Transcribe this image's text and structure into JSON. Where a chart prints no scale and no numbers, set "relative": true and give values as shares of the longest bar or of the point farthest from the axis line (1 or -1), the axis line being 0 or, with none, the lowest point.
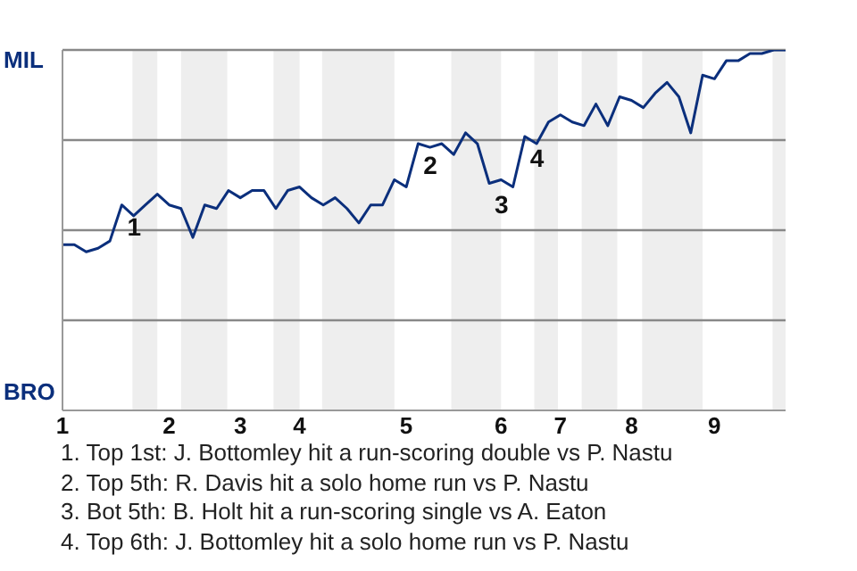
{
  "chart_data": {
    "type": "line",
    "relative": true,
    "categories": [
      "1",
      null,
      null,
      null,
      null,
      null,
      null,
      null,
      null,
      "2",
      null,
      null,
      null,
      null,
      null,
      "3",
      null,
      null,
      null,
      null,
      "4",
      null,
      null,
      null,
      null,
      null,
      null,
      null,
      null,
      "5",
      null,
      null,
      null,
      null,
      null,
      null,
      null,
      "6",
      null,
      null,
      null,
      null,
      "7",
      null,
      null,
      null,
      null,
      null,
      "8",
      null,
      null,
      null,
      null,
      null,
      null,
      "9",
      null,
      null,
      null,
      null,
      null,
      null
    ],
    "series": [
      {
        "color": "#0b2f7c",
        "values": [
          0.46,
          0.46,
          0.44,
          0.45,
          0.47,
          0.57,
          0.54,
          0.57,
          0.6,
          0.57,
          0.56,
          0.48,
          0.57,
          0.56,
          0.61,
          0.59,
          0.61,
          0.61,
          0.56,
          0.61,
          0.62,
          0.59,
          0.57,
          0.59,
          0.56,
          0.52,
          0.57,
          0.57,
          0.64,
          0.62,
          0.74,
          0.73,
          0.74,
          0.71,
          0.77,
          0.74,
          0.63,
          0.64,
          0.62,
          0.76,
          0.74,
          0.8,
          0.82,
          0.8,
          0.79,
          0.85,
          0.79,
          0.87,
          0.86,
          0.84,
          0.88,
          0.91,
          0.87,
          0.77,
          0.93,
          0.92,
          0.97,
          0.97,
          0.99,
          0.99,
          1,
          1
        ]
      }
    ],
    "grid": "y",
    "marker": "none",
    "line_style": "solid",
    "legend": false,
    "annotations": [
      "MIL",
      "BRO",
      {
        "text": "1",
        "y": 0.57
      },
      {
        "text": "2",
        "y": 0.74
      },
      {
        "text": "3",
        "y": 0.63
      },
      {
        "text": "4",
        "y": 0.76
      },
      "1. Top 1st: J. Bottomley hit a run-scoring double vs P. Nastu",
      "2. Top 5th: R. Davis hit a solo home run vs P. Nastu",
      "3. Bot 5th: B. Holt hit a run-scoring single vs A. Eaton",
      "4. Top 6th: J. Bottomley hit a solo home run vs P. Nastu"
    ]
  }
}
